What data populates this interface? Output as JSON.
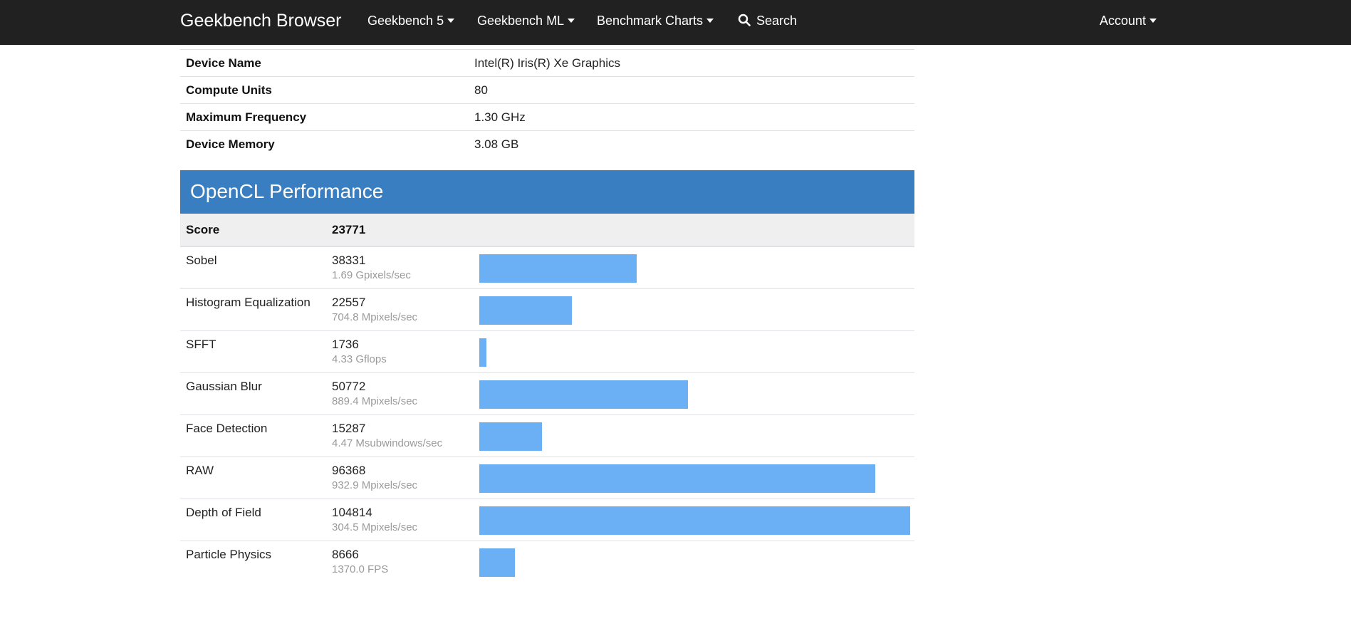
{
  "navbar": {
    "brand": "Geekbench Browser",
    "items": [
      {
        "label": "Geekbench 5",
        "dropdown": true
      },
      {
        "label": "Geekbench ML",
        "dropdown": true
      },
      {
        "label": "Benchmark Charts",
        "dropdown": true
      }
    ],
    "search_label": "Search",
    "account_label": "Account"
  },
  "device": {
    "rows": [
      {
        "label": "Device Name",
        "value": "Intel(R) Iris(R) Xe Graphics"
      },
      {
        "label": "Compute Units",
        "value": "80"
      },
      {
        "label": "Maximum Frequency",
        "value": "1.30 GHz"
      },
      {
        "label": "Device Memory",
        "value": "3.08 GB"
      }
    ]
  },
  "opencl": {
    "title": "OpenCL Performance",
    "score_label": "Score",
    "score_value": "23771",
    "benchmarks": [
      {
        "name": "Sobel",
        "score": "38331",
        "unit": "1.69 Gpixels/sec",
        "value": 38331
      },
      {
        "name": "Histogram Equalization",
        "score": "22557",
        "unit": "704.8 Mpixels/sec",
        "value": 22557
      },
      {
        "name": "SFFT",
        "score": "1736",
        "unit": "4.33 Gflops",
        "value": 1736
      },
      {
        "name": "Gaussian Blur",
        "score": "50772",
        "unit": "889.4 Mpixels/sec",
        "value": 50772
      },
      {
        "name": "Face Detection",
        "score": "15287",
        "unit": "4.47 Msubwindows/sec",
        "value": 15287
      },
      {
        "name": "RAW",
        "score": "96368",
        "unit": "932.9 Mpixels/sec",
        "value": 96368
      },
      {
        "name": "Depth of Field",
        "score": "104814",
        "unit": "304.5 Mpixels/sec",
        "value": 104814
      },
      {
        "name": "Particle Physics",
        "score": "8666",
        "unit": "1370.0 FPS",
        "value": 8666
      }
    ],
    "bar_max": 104814,
    "bar_color": "#6bb0f5",
    "header_color": "#387ec0"
  }
}
